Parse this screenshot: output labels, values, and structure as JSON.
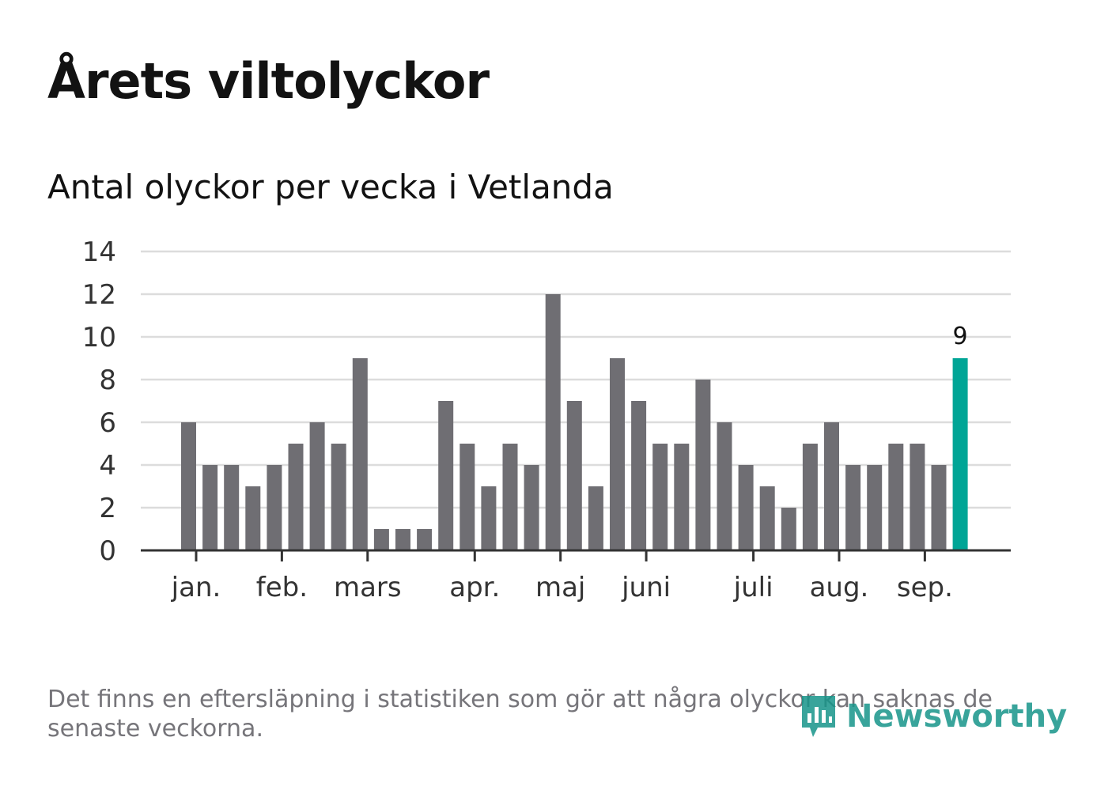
{
  "header": {
    "title": "Årets viltolyckor",
    "subtitle": "Antal olyckor per vecka i Vetlanda"
  },
  "chart_data": {
    "type": "bar",
    "x": [
      1,
      2,
      3,
      4,
      5,
      6,
      7,
      8,
      9,
      10,
      11,
      12,
      13,
      14,
      15,
      16,
      17,
      18,
      19,
      20,
      21,
      22,
      23,
      24,
      25,
      26,
      27,
      28,
      29,
      30,
      31,
      32,
      33,
      34,
      35,
      36,
      37
    ],
    "values": [
      6,
      4,
      4,
      3,
      4,
      5,
      6,
      5,
      9,
      1,
      1,
      1,
      7,
      5,
      3,
      5,
      4,
      12,
      7,
      3,
      9,
      7,
      5,
      5,
      8,
      6,
      4,
      3,
      2,
      5,
      6,
      4,
      4,
      5,
      5,
      4,
      9
    ],
    "month_ticks": [
      {
        "label": "jan.",
        "week": 1.35
      },
      {
        "label": "feb.",
        "week": 5.35
      },
      {
        "label": "mars",
        "week": 9.35
      },
      {
        "label": "apr.",
        "week": 14.35
      },
      {
        "label": "maj",
        "week": 18.35
      },
      {
        "label": "juni",
        "week": 22.35
      },
      {
        "label": "juli",
        "week": 27.35
      },
      {
        "label": "aug.",
        "week": 31.35
      },
      {
        "label": "sep.",
        "week": 35.35
      }
    ],
    "ylim": [
      0,
      14
    ],
    "yticks": [
      "0",
      "2",
      "4",
      "6",
      "8",
      "10",
      "12",
      "14"
    ],
    "grid": true,
    "bar_color": "#6f6e73",
    "highlight_color": "#00a596",
    "highlight_index": 36,
    "highlight_label": "9"
  },
  "footer": {
    "note": "Det finns en eftersläpning i statistiken som gör att några olyckor kan saknas de senaste veckorna.",
    "logo_text": "Newsworthy",
    "logo_icon": "newsworthy-logo-icon",
    "logo_color": "#17958a"
  }
}
